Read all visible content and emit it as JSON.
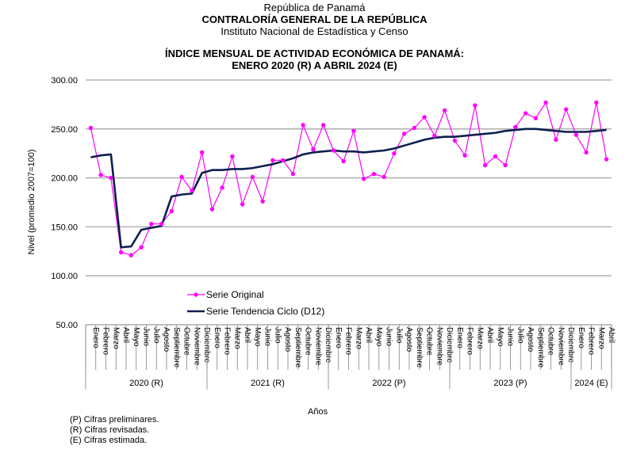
{
  "header": {
    "line1": "República de Panamá",
    "line2": "CONTRALORÍA  GENERAL DE LA REPÚBLICA",
    "line3": "Instituto Nacional de Estadística y Censo"
  },
  "notes": [
    "(P) Cifras preliminares.",
    "(R) Cifras revisadas.",
    "(E) Cifras estimada."
  ],
  "colors": {
    "original": "#ff00ff",
    "trend": "#0d1f4d",
    "grid": "#a6a6a6"
  },
  "chart_data": {
    "type": "line",
    "title": "ÍNDICE MENSUAL DE ACTIVIDAD ECONÓMICA DE PANAMÁ:",
    "subtitle": "ENERO 2020 (R) A ABRIL 2024 (E)",
    "xlabel": "Años",
    "ylabel": "Nivel (promedio 2007=100)",
    "ylim": [
      50,
      300
    ],
    "yticks": [
      "300.00",
      "250.00",
      "200.00",
      "150.00",
      "100.00",
      "50.00"
    ],
    "grid": true,
    "legend_position": "bottom-left-inside",
    "year_groups": [
      {
        "label": "2020 (R)",
        "months": [
          "Enero",
          "Febrero",
          "Marzo",
          "Abril",
          "Mayo",
          "Junio",
          "Julio",
          "Agosto",
          "Septiembre",
          "Octubre",
          "Noviembre",
          "Diciembre"
        ]
      },
      {
        "label": "2021 (R)",
        "months": [
          "Enero",
          "Febrero",
          "Marzo",
          "Abril",
          "Mayo",
          "Junio",
          "Julio",
          "Agosto",
          "Septiembre",
          "Octubre",
          "Noviembre",
          "Diciembre"
        ]
      },
      {
        "label": "2022 (P)",
        "months": [
          "Enero",
          "Febrero",
          "Marzo",
          "Abril",
          "Mayo",
          "Junio",
          "Julio",
          "Agosto",
          "Septiembre",
          "Octubre",
          "Noviembre",
          "Diciembre"
        ]
      },
      {
        "label": "2023 (P)",
        "months": [
          "Enero",
          "Febrero",
          "Marzo",
          "Abril",
          "Mayo",
          "Junio",
          "Julio",
          "Agosto",
          "Septiembre",
          "Octubre",
          "Noviembre",
          "Diciembre"
        ]
      },
      {
        "label": "2024 (E)",
        "months": [
          "Enero",
          "Febrero",
          "Marzo",
          "Abril"
        ]
      }
    ],
    "series": [
      {
        "name": "Serie Original",
        "values": [
          251,
          203,
          200,
          124,
          121,
          129,
          153,
          153,
          166,
          201,
          187,
          226,
          168,
          190,
          222,
          173,
          201,
          176,
          218,
          218,
          204,
          254,
          229,
          254,
          228,
          217,
          248,
          199,
          204,
          201,
          225,
          245,
          251,
          262,
          243,
          269,
          238,
          223,
          274,
          213,
          222,
          213,
          252,
          266,
          261,
          277,
          239,
          270,
          244,
          226,
          277,
          219
        ]
      },
      {
        "name": "Serie Tendencia Ciclo (D12)",
        "values": [
          221,
          223,
          224,
          129,
          130,
          147,
          149,
          151,
          181,
          183,
          184,
          205,
          208,
          208,
          209,
          209,
          210,
          212,
          214,
          217,
          220,
          224,
          226,
          227,
          228,
          227,
          227,
          226,
          227,
          228,
          230,
          233,
          236,
          239,
          241,
          242,
          242,
          243,
          244,
          245,
          246,
          248,
          249,
          250,
          250,
          249,
          248,
          247,
          247,
          247,
          248,
          249
        ]
      }
    ]
  }
}
